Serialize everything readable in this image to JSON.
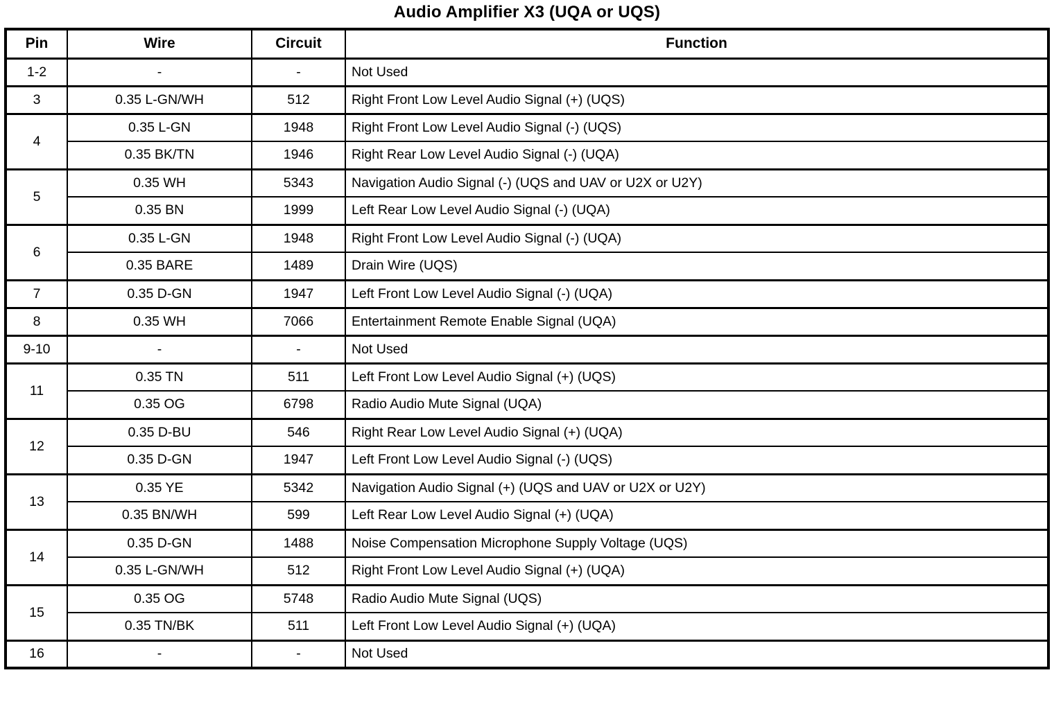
{
  "title": "Audio Amplifier X3 (UQA or UQS)",
  "colors": {
    "background": "#ffffff",
    "text": "#000000",
    "border": "#000000"
  },
  "table": {
    "headers": [
      "Pin",
      "Wire",
      "Circuit",
      "Function"
    ],
    "groups": [
      {
        "pin": "1-2",
        "entries": [
          {
            "wire": "-",
            "circuit": "-",
            "function": "Not Used"
          }
        ]
      },
      {
        "pin": "3",
        "entries": [
          {
            "wire": "0.35 L-GN/WH",
            "circuit": "512",
            "function": "Right Front Low Level Audio Signal (+) (UQS)"
          }
        ]
      },
      {
        "pin": "4",
        "entries": [
          {
            "wire": "0.35 L-GN",
            "circuit": "1948",
            "function": "Right Front Low Level Audio Signal (-) (UQS)"
          },
          {
            "wire": "0.35 BK/TN",
            "circuit": "1946",
            "function": "Right Rear Low Level Audio Signal (-) (UQA)"
          }
        ]
      },
      {
        "pin": "5",
        "entries": [
          {
            "wire": "0.35 WH",
            "circuit": "5343",
            "function": "Navigation Audio Signal (-) (UQS and UAV or U2X or U2Y)"
          },
          {
            "wire": "0.35 BN",
            "circuit": "1999",
            "function": "Left Rear Low Level Audio Signal (-) (UQA)"
          }
        ]
      },
      {
        "pin": "6",
        "entries": [
          {
            "wire": "0.35 L-GN",
            "circuit": "1948",
            "function": "Right Front Low Level Audio Signal (-) (UQA)"
          },
          {
            "wire": "0.35 BARE",
            "circuit": "1489",
            "function": "Drain Wire (UQS)"
          }
        ]
      },
      {
        "pin": "7",
        "entries": [
          {
            "wire": "0.35 D-GN",
            "circuit": "1947",
            "function": "Left Front Low Level Audio Signal (-) (UQA)"
          }
        ]
      },
      {
        "pin": "8",
        "entries": [
          {
            "wire": "0.35 WH",
            "circuit": "7066",
            "function": "Entertainment Remote Enable Signal (UQA)"
          }
        ]
      },
      {
        "pin": "9-10",
        "entries": [
          {
            "wire": "-",
            "circuit": "-",
            "function": "Not Used"
          }
        ]
      },
      {
        "pin": "11",
        "entries": [
          {
            "wire": "0.35 TN",
            "circuit": "511",
            "function": "Left Front Low Level Audio Signal (+) (UQS)"
          },
          {
            "wire": "0.35 OG",
            "circuit": "6798",
            "function": "Radio Audio Mute Signal (UQA)"
          }
        ]
      },
      {
        "pin": "12",
        "entries": [
          {
            "wire": "0.35 D-BU",
            "circuit": "546",
            "function": "Right Rear Low Level Audio Signal (+) (UQA)"
          },
          {
            "wire": "0.35 D-GN",
            "circuit": "1947",
            "function": "Left Front Low Level Audio Signal (-) (UQS)"
          }
        ]
      },
      {
        "pin": "13",
        "entries": [
          {
            "wire": "0.35 YE",
            "circuit": "5342",
            "function": "Navigation Audio Signal (+) (UQS and UAV or U2X or U2Y)"
          },
          {
            "wire": "0.35 BN/WH",
            "circuit": "599",
            "function": "Left Rear Low Level Audio Signal (+) (UQA)"
          }
        ]
      },
      {
        "pin": "14",
        "entries": [
          {
            "wire": "0.35 D-GN",
            "circuit": "1488",
            "function": "Noise Compensation Microphone Supply Voltage (UQS)"
          },
          {
            "wire": "0.35 L-GN/WH",
            "circuit": "512",
            "function": "Right Front Low Level Audio Signal (+) (UQA)"
          }
        ]
      },
      {
        "pin": "15",
        "entries": [
          {
            "wire": "0.35 OG",
            "circuit": "5748",
            "function": "Radio Audio Mute Signal (UQS)"
          },
          {
            "wire": "0.35 TN/BK",
            "circuit": "511",
            "function": "Left Front Low Level Audio Signal (+) (UQA)"
          }
        ]
      },
      {
        "pin": "16",
        "entries": [
          {
            "wire": "-",
            "circuit": "-",
            "function": "Not Used"
          }
        ]
      }
    ]
  }
}
